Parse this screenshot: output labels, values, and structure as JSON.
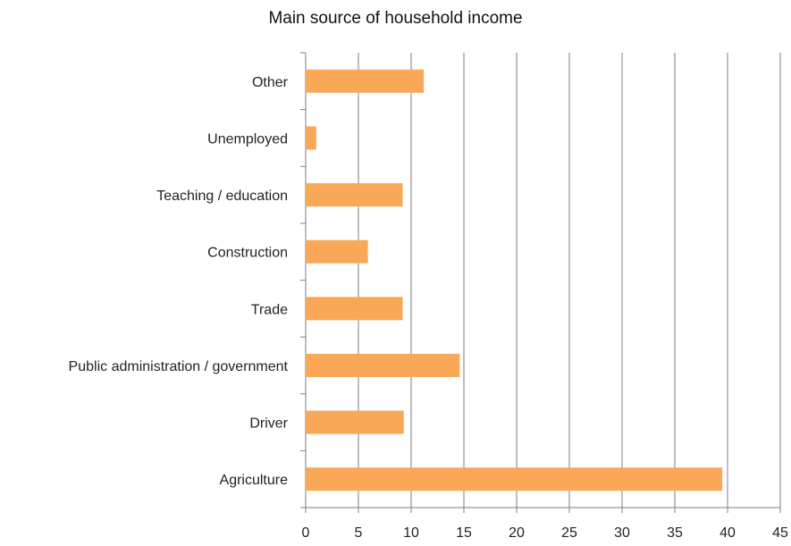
{
  "chart_data": {
    "type": "bar",
    "orientation": "horizontal",
    "title": "Main source of household income",
    "xlabel": "",
    "ylabel": "",
    "categories": [
      "Other",
      "Unemployed",
      "Teaching / education",
      "Construction",
      "Trade",
      "Public administration / government",
      "Driver",
      "Agriculture"
    ],
    "values": [
      11.2,
      1,
      9.2,
      5.9,
      9.2,
      14.6,
      9.3,
      39.5
    ],
    "xlim": [
      0,
      45
    ],
    "xticks": [
      "0",
      "5",
      "10",
      "15",
      "20",
      "25",
      "30",
      "35",
      "40",
      "45"
    ],
    "grid": "vertical",
    "legend": "none",
    "bar_color": "#F9A857",
    "grid_color": "#7f7f7f"
  }
}
